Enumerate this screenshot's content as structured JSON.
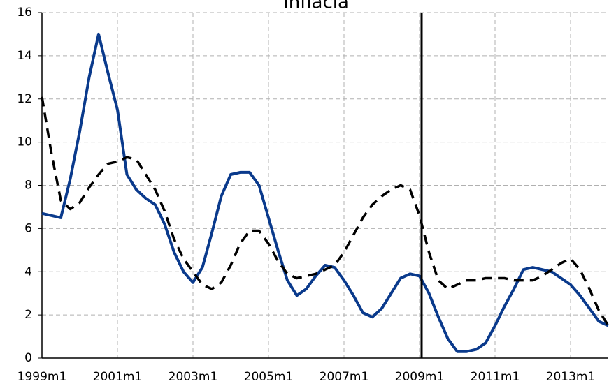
{
  "chart_data": {
    "type": "line",
    "title": "Inflacia",
    "categories": [
      "1999m1",
      null,
      null,
      null,
      null,
      null,
      null,
      null,
      "2001m1",
      null,
      null,
      null,
      null,
      null,
      null,
      null,
      "2003m1",
      null,
      null,
      null,
      null,
      null,
      null,
      null,
      "2005m1",
      null,
      null,
      null,
      null,
      null,
      null,
      null,
      "2007m1",
      null,
      null,
      null,
      null,
      null,
      null,
      null,
      "2009m1",
      null,
      null,
      null,
      null,
      null,
      null,
      null,
      "2011m1",
      null,
      null,
      null,
      null,
      null,
      null,
      null,
      "2013m1",
      null,
      null,
      null,
      null
    ],
    "series": [
      {
        "color": "#0a3a8c",
        "dash": false,
        "values": [
          6.7,
          6.6,
          6.5,
          8.3,
          10.5,
          13,
          15,
          13.2,
          11.5,
          8.5,
          7.8,
          7.4,
          7.1,
          6.2,
          4.9,
          4.0,
          3.5,
          4.2,
          5.8,
          7.5,
          8.5,
          8.6,
          8.6,
          8.0,
          6.5,
          5.0,
          3.6,
          2.9,
          3.2,
          3.8,
          4.3,
          4.2,
          3.6,
          2.9,
          2.1,
          1.9,
          2.3,
          3.0,
          3.7,
          3.9,
          3.8,
          3.0,
          1.9,
          0.9,
          0.3,
          0.3,
          0.4,
          0.7,
          1.5,
          2.4,
          3.2,
          4.1,
          4.2,
          4.1,
          4.0,
          3.7,
          3.4,
          2.9,
          2.3,
          1.7,
          1.5
        ]
      },
      {
        "color": "#000000",
        "dash": true,
        "values": [
          12.1,
          9.5,
          7.3,
          6.9,
          7.2,
          7.9,
          8.5,
          9.0,
          9.1,
          9.3,
          9.2,
          8.5,
          7.8,
          6.8,
          5.5,
          4.6,
          4.0,
          3.4,
          3.2,
          3.5,
          4.3,
          5.3,
          5.9,
          5.9,
          5.3,
          4.5,
          3.9,
          3.7,
          3.8,
          3.9,
          4.1,
          4.3,
          4.9,
          5.7,
          6.5,
          7.1,
          7.5,
          7.8,
          8.0,
          7.8,
          6.6,
          4.9,
          3.6,
          3.2,
          3.4,
          3.6,
          3.6,
          3.7,
          3.7,
          3.7,
          3.6,
          3.6,
          3.6,
          3.8,
          4.1,
          4.4,
          4.6,
          4.1,
          3.2,
          2.2,
          1.5
        ]
      }
    ],
    "vline_at": 40,
    "ylim": [
      0,
      16
    ],
    "yticks": [
      0,
      2,
      4,
      6,
      8,
      10,
      12,
      14,
      16
    ],
    "grid": true
  }
}
